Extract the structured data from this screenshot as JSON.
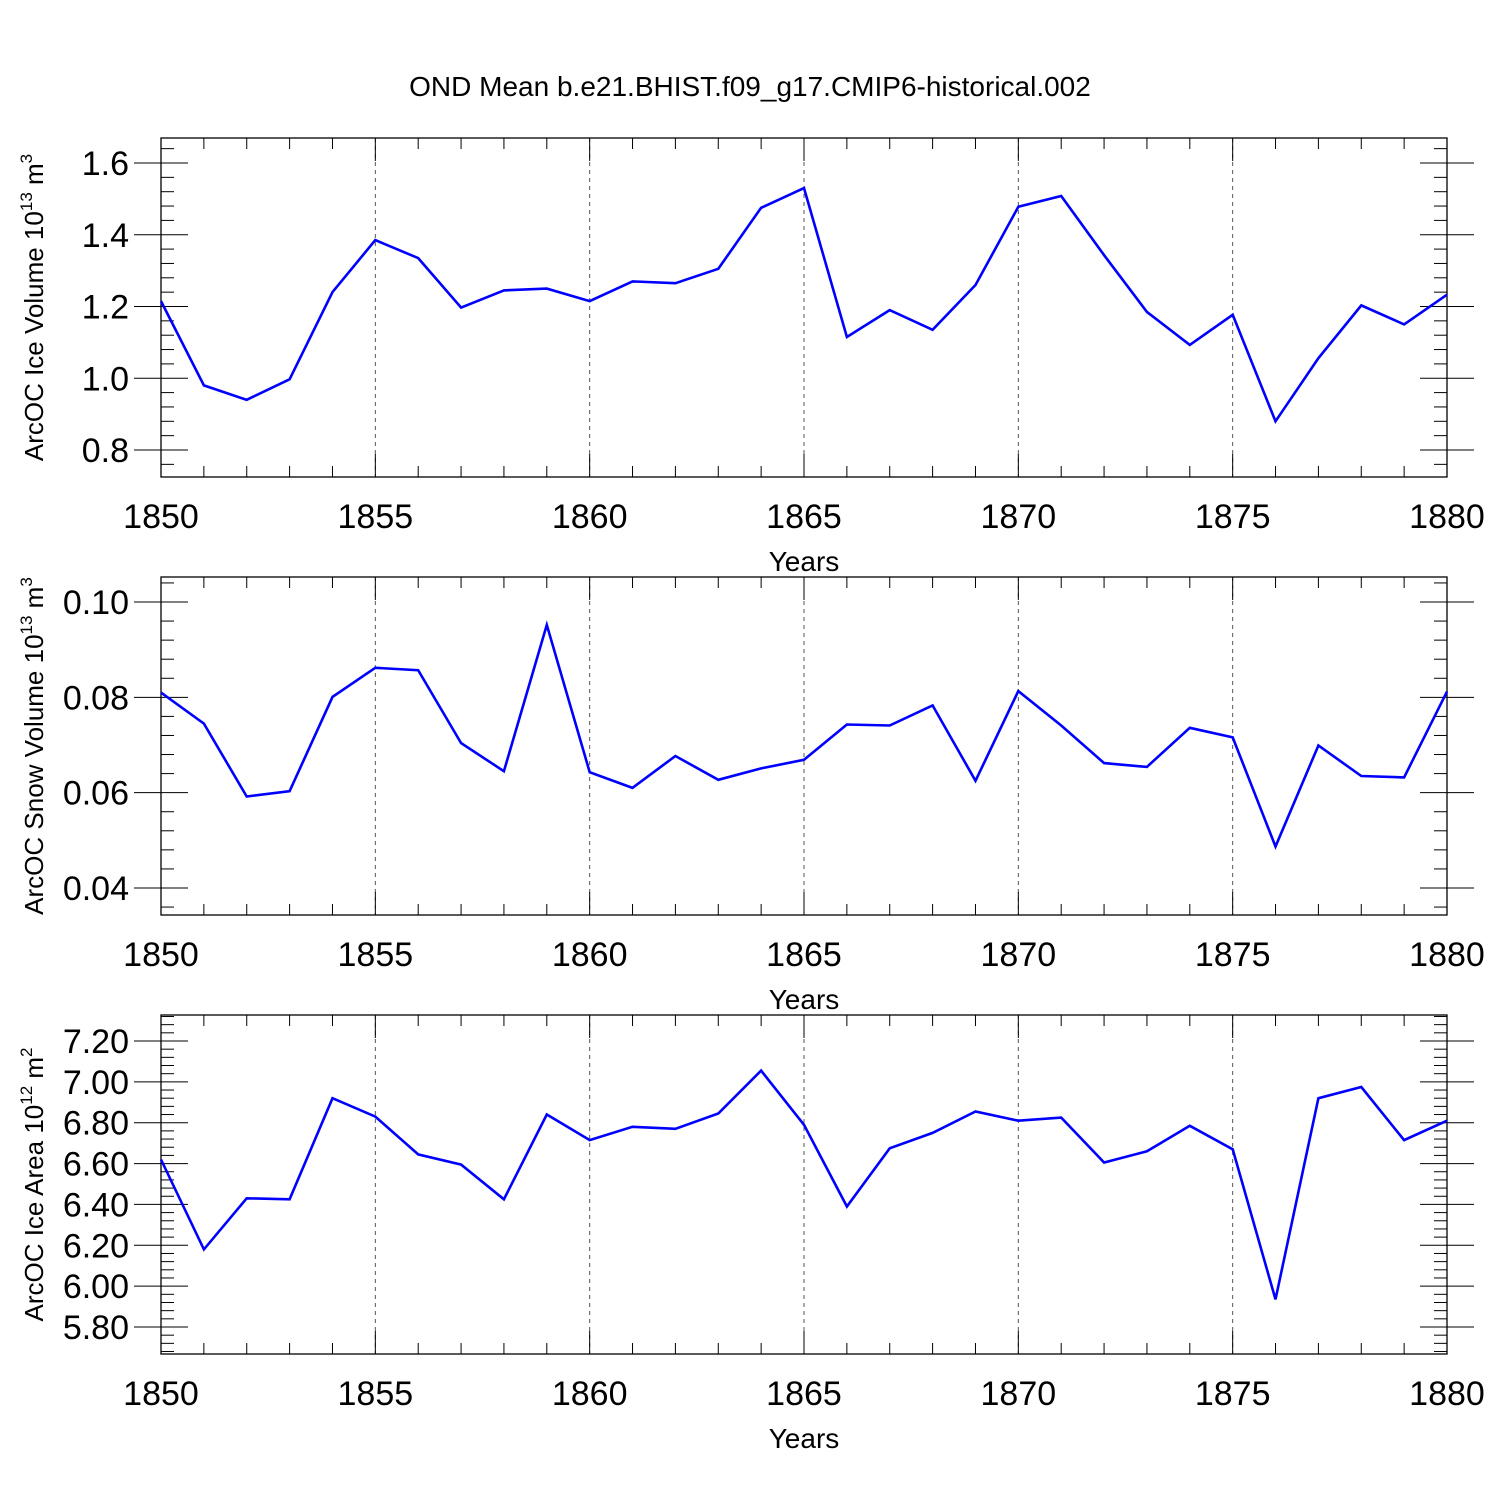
{
  "title": "OND Mean b.e21.BHIST.f09_g17.CMIP6-historical.002",
  "line_color": "#0000ff",
  "chart_data": [
    {
      "type": "line",
      "ylabel_main": "ArcOC Ice Volume 10",
      "ylabel_exp": "13",
      "ylabel_unit": " m",
      "ylabel_unit_exp": "3",
      "xlabel": "Years",
      "xlim": [
        1850,
        1880
      ],
      "ylim": [
        0.8,
        1.6
      ],
      "yticks": [
        "0.8",
        "1.0",
        "1.2",
        "1.4",
        "1.6"
      ],
      "xticks": [
        "1850",
        "1855",
        "1860",
        "1865",
        "1870",
        "1875",
        "1880"
      ],
      "x": [
        1850,
        1851,
        1852,
        1853,
        1854,
        1855,
        1856,
        1857,
        1858,
        1859,
        1860,
        1861,
        1862,
        1863,
        1864,
        1865,
        1866,
        1867,
        1868,
        1869,
        1870,
        1871,
        1872,
        1873,
        1874,
        1875,
        1876,
        1877,
        1878,
        1879,
        1880
      ],
      "values": [
        1.215,
        0.98,
        0.94,
        0.997,
        1.24,
        1.385,
        1.335,
        1.197,
        1.245,
        1.25,
        1.215,
        1.27,
        1.265,
        1.305,
        1.475,
        1.53,
        1.115,
        1.19,
        1.135,
        1.26,
        1.478,
        1.508,
        1.343,
        1.185,
        1.093,
        1.177,
        0.88,
        1.056,
        1.203,
        1.15,
        1.233
      ]
    },
    {
      "type": "line",
      "ylabel_main": "ArcOC Snow Volume 10",
      "ylabel_exp": "13",
      "ylabel_unit": " m",
      "ylabel_unit_exp": "3",
      "xlabel": "Years",
      "xlim": [
        1850,
        1880
      ],
      "ylim": [
        0.04,
        0.1
      ],
      "yticks": [
        "0.04",
        "0.06",
        "0.08",
        "0.10"
      ],
      "xticks": [
        "1850",
        "1855",
        "1860",
        "1865",
        "1870",
        "1875",
        "1880"
      ],
      "x": [
        1850,
        1851,
        1852,
        1853,
        1854,
        1855,
        1856,
        1857,
        1858,
        1859,
        1860,
        1861,
        1862,
        1863,
        1864,
        1865,
        1866,
        1867,
        1868,
        1869,
        1870,
        1871,
        1872,
        1873,
        1874,
        1875,
        1876,
        1877,
        1878,
        1879,
        1880
      ],
      "values": [
        0.081,
        0.0745,
        0.0592,
        0.0603,
        0.0801,
        0.0862,
        0.0857,
        0.0704,
        0.0645,
        0.0952,
        0.0643,
        0.061,
        0.0677,
        0.0627,
        0.0651,
        0.0669,
        0.0743,
        0.0741,
        0.0783,
        0.0625,
        0.0813,
        0.0741,
        0.0662,
        0.0654,
        0.0736,
        0.0716,
        0.0487,
        0.0699,
        0.0635,
        0.0632,
        0.0812
      ]
    },
    {
      "type": "line",
      "ylabel_main": "ArcOC Ice Area 10",
      "ylabel_exp": "12",
      "ylabel_unit": " m",
      "ylabel_unit_exp": "2",
      "xlabel": "Years",
      "xlim": [
        1850,
        1880
      ],
      "ylim": [
        5.8,
        7.2
      ],
      "yticks": [
        "5.80",
        "6.00",
        "6.20",
        "6.40",
        "6.60",
        "6.80",
        "7.00",
        "7.20"
      ],
      "xticks": [
        "1850",
        "1855",
        "1860",
        "1865",
        "1870",
        "1875",
        "1880"
      ],
      "x": [
        1850,
        1851,
        1852,
        1853,
        1854,
        1855,
        1856,
        1857,
        1858,
        1859,
        1860,
        1861,
        1862,
        1863,
        1864,
        1865,
        1866,
        1867,
        1868,
        1869,
        1870,
        1871,
        1872,
        1873,
        1874,
        1875,
        1876,
        1877,
        1878,
        1879,
        1880
      ],
      "values": [
        6.62,
        6.18,
        6.43,
        6.425,
        6.92,
        6.83,
        6.645,
        6.595,
        6.425,
        6.84,
        6.715,
        6.78,
        6.77,
        6.845,
        7.055,
        6.79,
        6.39,
        6.675,
        6.75,
        6.855,
        6.81,
        6.825,
        6.605,
        6.66,
        6.785,
        6.67,
        5.935,
        6.92,
        6.975,
        6.715,
        6.81
      ]
    }
  ]
}
